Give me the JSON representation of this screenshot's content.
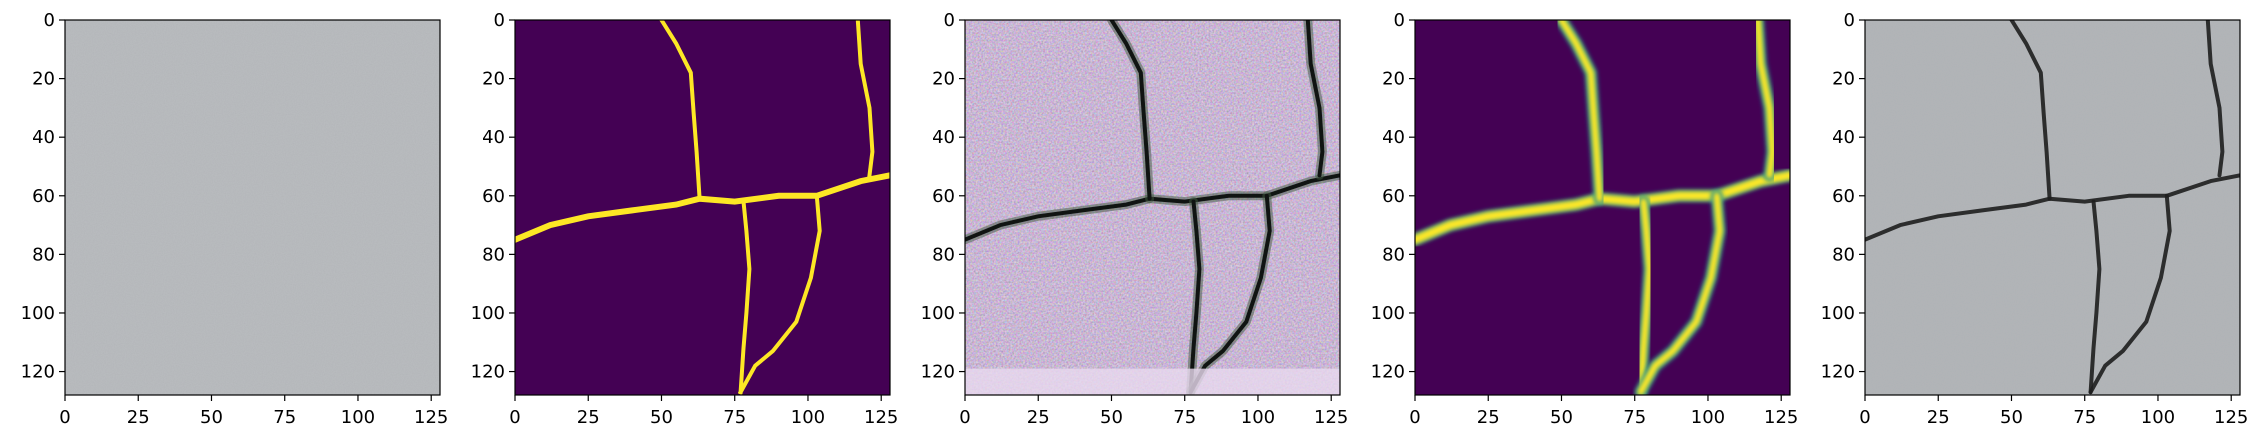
{
  "figure": {
    "panels": [
      {
        "id": "p1",
        "kind": "texture",
        "base": "#b8bbbe"
      },
      {
        "id": "p2",
        "kind": "mask",
        "bg": "#440154",
        "fg": "#fde725"
      },
      {
        "id": "p3",
        "kind": "noisy",
        "base": "#d8c5dd"
      },
      {
        "id": "p4",
        "kind": "soft-mask",
        "bg": "#440154",
        "fg": "#fde725",
        "mid": "#21918c"
      },
      {
        "id": "p5",
        "kind": "texture-crack",
        "base": "#b0b3b6"
      }
    ]
  },
  "chart_data": {
    "type": "heatmap",
    "panel_count": 5,
    "xlim": [
      0,
      128
    ],
    "ylim": [
      128,
      0
    ],
    "xticks": [
      0,
      25,
      50,
      75,
      100,
      125
    ],
    "yticks": [
      0,
      20,
      40,
      60,
      80,
      100,
      120
    ],
    "xtick_labels": [
      "0",
      "25",
      "50",
      "75",
      "100",
      "125"
    ],
    "ytick_labels": [
      "0",
      "20",
      "40",
      "60",
      "80",
      "100",
      "120"
    ],
    "crack_paths": [
      {
        "name": "horizontal-main",
        "points": [
          [
            0,
            75
          ],
          [
            12,
            70
          ],
          [
            25,
            67
          ],
          [
            40,
            65
          ],
          [
            55,
            63
          ],
          [
            63,
            61
          ],
          [
            75,
            62
          ],
          [
            90,
            60
          ],
          [
            103,
            60
          ],
          [
            118,
            55
          ],
          [
            128,
            53
          ]
        ]
      },
      {
        "name": "top-branch",
        "points": [
          [
            50,
            0
          ],
          [
            55,
            8
          ],
          [
            60,
            18
          ],
          [
            61,
            32
          ],
          [
            62,
            45
          ],
          [
            63,
            61
          ]
        ]
      },
      {
        "name": "right-branch",
        "points": [
          [
            117,
            0
          ],
          [
            118,
            15
          ],
          [
            121,
            30
          ],
          [
            122,
            45
          ],
          [
            121,
            53
          ]
        ]
      },
      {
        "name": "lower-left",
        "points": [
          [
            78,
            62
          ],
          [
            79,
            72
          ],
          [
            80,
            85
          ],
          [
            79,
            100
          ],
          [
            78,
            112
          ],
          [
            77,
            127
          ]
        ]
      },
      {
        "name": "lower-right",
        "points": [
          [
            103,
            60
          ],
          [
            104,
            72
          ],
          [
            101,
            88
          ],
          [
            96,
            103
          ],
          [
            88,
            113
          ],
          [
            82,
            118
          ],
          [
            77,
            127
          ]
        ]
      }
    ]
  }
}
